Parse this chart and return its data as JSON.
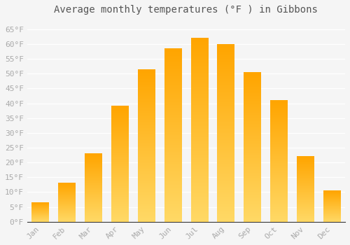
{
  "title": "Average monthly temperatures (°F ) in Gibbons",
  "months": [
    "Jan",
    "Feb",
    "Mar",
    "Apr",
    "May",
    "Jun",
    "Jul",
    "Aug",
    "Sep",
    "Oct",
    "Nov",
    "Dec"
  ],
  "values": [
    6.5,
    13.0,
    23.0,
    39.0,
    51.5,
    58.5,
    62.0,
    60.0,
    50.5,
    41.0,
    22.0,
    10.5
  ],
  "bar_color_bottom": "#FFD966",
  "bar_color_top": "#FFA500",
  "ylim": [
    0,
    68
  ],
  "yticks": [
    0,
    5,
    10,
    15,
    20,
    25,
    30,
    35,
    40,
    45,
    50,
    55,
    60,
    65
  ],
  "ytick_labels": [
    "0°F",
    "5°F",
    "10°F",
    "15°F",
    "20°F",
    "25°F",
    "30°F",
    "35°F",
    "40°F",
    "45°F",
    "50°F",
    "55°F",
    "60°F",
    "65°F"
  ],
  "background_color": "#f5f5f5",
  "grid_color": "#ffffff",
  "tick_label_color": "#aaaaaa",
  "title_color": "#555555",
  "title_fontsize": 10,
  "tick_fontsize": 8
}
